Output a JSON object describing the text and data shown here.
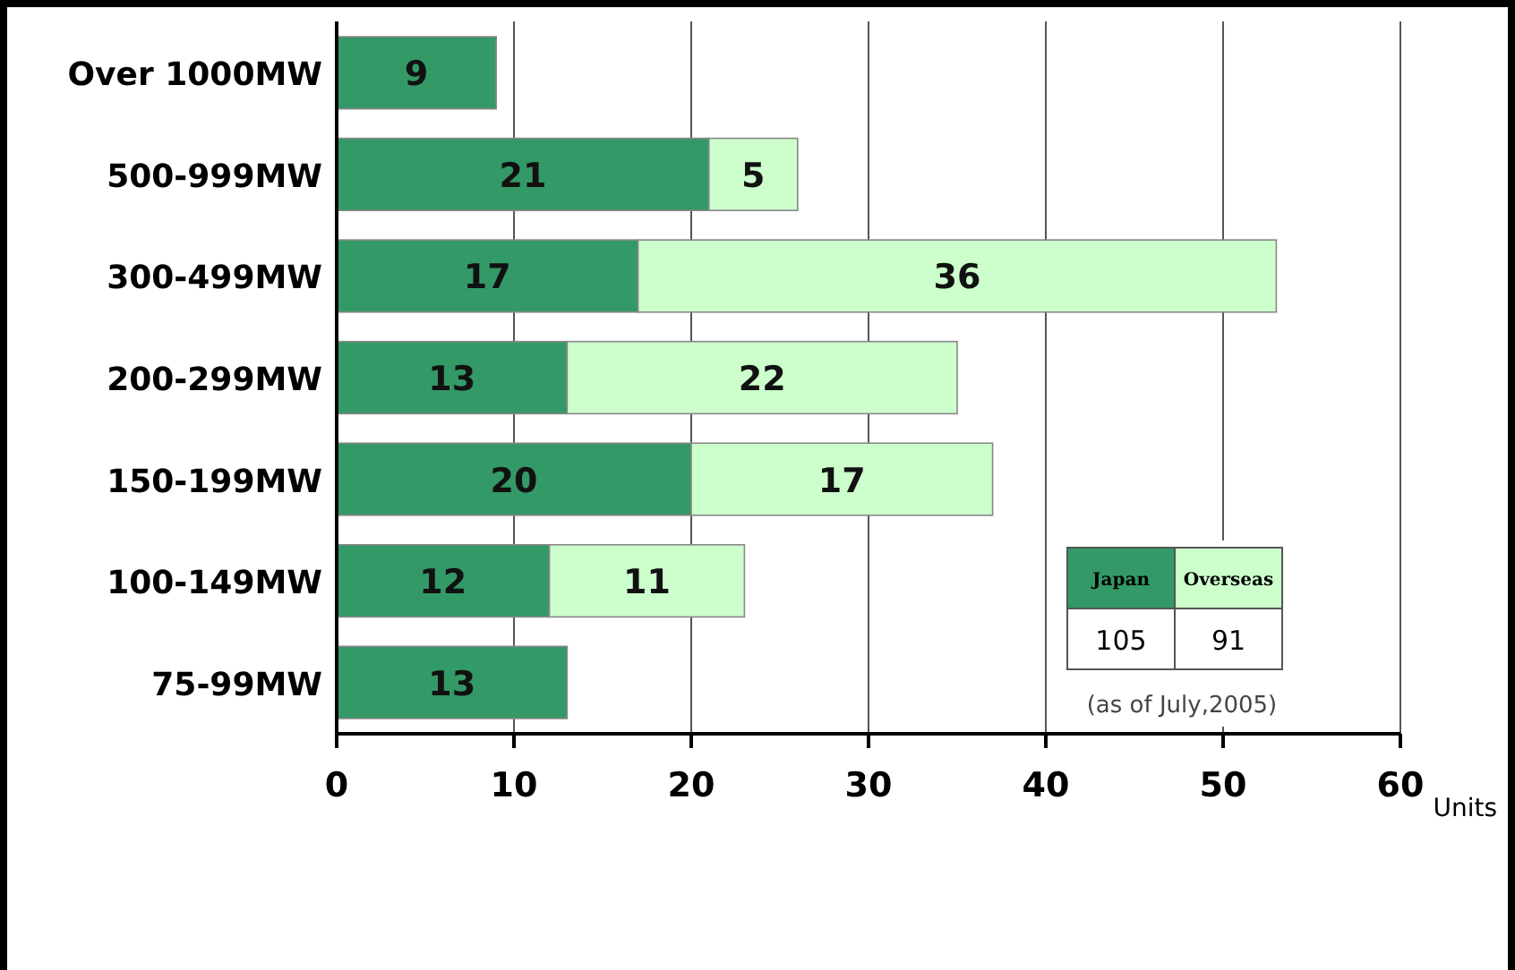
{
  "chart_data": {
    "type": "bar",
    "orientation": "horizontal",
    "stacked": true,
    "xlabel": "Units",
    "categories": [
      "Over 1000MW",
      "500-999MW",
      "300-499MW",
      "200-299MW",
      "150-199MW",
      "100-149MW",
      "75-99MW"
    ],
    "series": [
      {
        "name": "Japan",
        "color": "#339966",
        "values": [
          9,
          21,
          17,
          13,
          20,
          12,
          13
        ]
      },
      {
        "name": "Overseas",
        "color": "#ccffcc",
        "values": [
          null,
          5,
          36,
          22,
          17,
          11,
          null
        ]
      }
    ],
    "xlim": [
      0,
      60
    ],
    "xticks": [
      0,
      10,
      20,
      30,
      40,
      50,
      60
    ],
    "grid": "x",
    "data_labels": true,
    "legend": "bottom right",
    "annotations": [
      "105",
      "91",
      "(as of July,2005)"
    ]
  }
}
